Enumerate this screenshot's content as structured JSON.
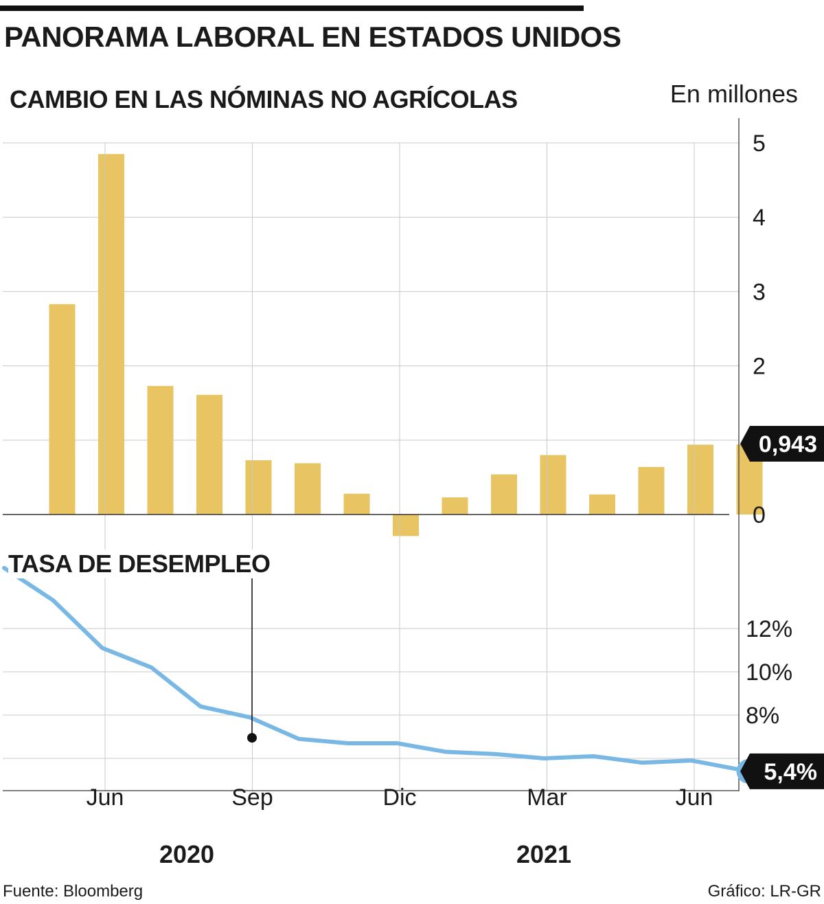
{
  "title": "PANORAMA LABORAL EN ESTADOS UNIDOS",
  "source": "Fuente: Bloomberg",
  "credit": "Gráfico: LR-GR",
  "colors": {
    "bar": "#E8C462",
    "line": "#79B8E4",
    "callout_bg": "#111111",
    "grid": "#c8c8c8"
  },
  "chart_data": [
    {
      "type": "bar",
      "title": "CAMBIO EN LAS NÓMINAS NO AGRÍCOLAS",
      "unit": "En millones",
      "x_ticks": [
        "Jun",
        "Sep",
        "Dic",
        "Mar",
        "Jun"
      ],
      "years": [
        "2020",
        "2021"
      ],
      "categories": [
        "May 2020",
        "Jun 2020",
        "Jul 2020",
        "Ago 2020",
        "Sep 2020",
        "Oct 2020",
        "Nov 2020",
        "Dic 2020",
        "Ene 2021",
        "Feb 2021",
        "Mar 2021",
        "Abr 2021",
        "May 2021",
        "Jun 2021",
        "Jul 2021"
      ],
      "values": [
        2.83,
        4.85,
        1.73,
        1.61,
        0.73,
        0.69,
        0.28,
        -0.29,
        0.23,
        0.54,
        0.8,
        0.27,
        0.64,
        0.94,
        0.943
      ],
      "y_ticks": [
        0,
        1,
        2,
        3,
        4,
        5
      ],
      "y_tick_labels": [
        "0",
        "",
        "2",
        "3",
        "4",
        "5"
      ],
      "ylim": [
        -0.4,
        5.4
      ],
      "highlight_label": "0,943",
      "grid": true
    },
    {
      "type": "line",
      "title": "TASA DE DESEMPLEO",
      "x": [
        "Abr 2020",
        "May 2020",
        "Jun 2020",
        "Jul 2020",
        "Ago 2020",
        "Sep 2020",
        "Oct 2020",
        "Nov 2020",
        "Dic 2020",
        "Ene 2021",
        "Feb 2021",
        "Mar 2021",
        "Abr 2021",
        "May 2021",
        "Jun 2021",
        "Jul 2021"
      ],
      "values": [
        14.8,
        13.3,
        11.1,
        10.2,
        8.4,
        7.9,
        6.9,
        6.7,
        6.7,
        6.3,
        6.2,
        6.0,
        6.1,
        5.8,
        5.9,
        5.4
      ],
      "y_ticks": [
        6,
        8,
        10,
        12
      ],
      "y_tick_labels": [
        "",
        "8%",
        "10%",
        "12%"
      ],
      "highlight_label": "5,4%",
      "grid": true
    }
  ]
}
